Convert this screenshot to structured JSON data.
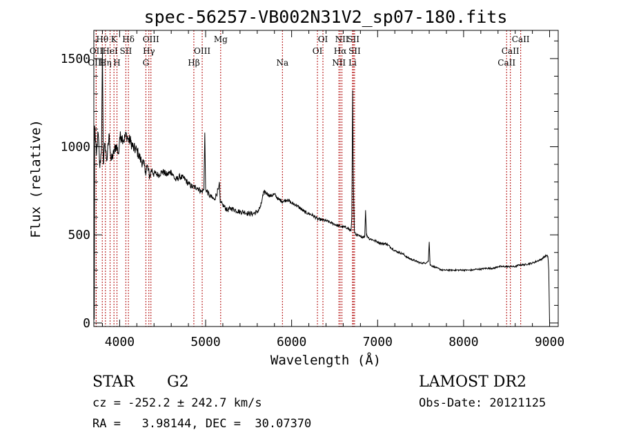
{
  "chart_data": {
    "type": "line",
    "title": "spec-56257-VB002N31V2_sp07-180.fits",
    "xlabel": "Wavelength (Å)",
    "ylabel": "Flux (relative)",
    "xlim": [
      3700,
      9100
    ],
    "ylim": [
      -20,
      1660
    ],
    "x_ticks": [
      4000,
      5000,
      6000,
      7000,
      8000,
      9000
    ],
    "y_ticks": [
      0,
      500,
      1000,
      1500
    ],
    "x_minor_step": 200,
    "y_minor_step": 100,
    "grid": false,
    "line_markers": [
      {
        "label": "Hθ",
        "wavelength": 3798,
        "row": 0
      },
      {
        "label": "K",
        "wavelength": 3934,
        "row": 0
      },
      {
        "label": "Hδ",
        "wavelength": 4102,
        "row": 0
      },
      {
        "label": "OIII",
        "wavelength": 4364,
        "row": 0
      },
      {
        "label": "Mg",
        "wavelength": 5175,
        "row": 0
      },
      {
        "label": "OI",
        "wavelength": 6364,
        "row": 0
      },
      {
        "label": "NII",
        "wavelength": 6585,
        "row": 0
      },
      {
        "label": "SII",
        "wavelength": 6718,
        "row": 0
      },
      {
        "label": "CaII",
        "wavelength": 8664,
        "row": 0
      },
      {
        "label": "OII",
        "wavelength": 3727,
        "row": 1
      },
      {
        "label": "HeI",
        "wavelength": 3889,
        "row": 1
      },
      {
        "label": "SII",
        "wavelength": 4072,
        "row": 1
      },
      {
        "label": "Hγ",
        "wavelength": 4340,
        "row": 1
      },
      {
        "label": "OIII",
        "wavelength": 4960,
        "row": 1
      },
      {
        "label": "OI",
        "wavelength": 6300,
        "row": 1
      },
      {
        "label": "Hα",
        "wavelength": 6565,
        "row": 1
      },
      {
        "label": "SII",
        "wavelength": 6732,
        "row": 1
      },
      {
        "label": "CaII",
        "wavelength": 8544,
        "row": 1
      },
      {
        "label": "OIII",
        "wavelength": 3727,
        "row": 2
      },
      {
        "label": "Hη",
        "wavelength": 3835,
        "row": 2
      },
      {
        "label": "H",
        "wavelength": 3969,
        "row": 2
      },
      {
        "label": "G",
        "wavelength": 4305,
        "row": 2
      },
      {
        "label": "Hβ",
        "wavelength": 4863,
        "row": 2
      },
      {
        "label": "Na",
        "wavelength": 5893,
        "row": 2
      },
      {
        "label": "NII",
        "wavelength": 6550,
        "row": 2
      },
      {
        "label": "Li",
        "wavelength": 6708,
        "row": 2
      },
      {
        "label": "CaII",
        "wavelength": 8500,
        "row": 2
      }
    ],
    "spectrum_anchors": [
      [
        3700,
        430
      ],
      [
        3705,
        20
      ],
      [
        3710,
        1120
      ],
      [
        3730,
        950
      ],
      [
        3750,
        1080
      ],
      [
        3770,
        880
      ],
      [
        3790,
        1000
      ],
      [
        3800,
        1560
      ],
      [
        3810,
        900
      ],
      [
        3830,
        1020
      ],
      [
        3850,
        920
      ],
      [
        3880,
        1070
      ],
      [
        3900,
        920
      ],
      [
        3930,
        960
      ],
      [
        3960,
        1010
      ],
      [
        3990,
        960
      ],
      [
        4000,
        1050
      ],
      [
        4020,
        1060
      ],
      [
        4050,
        1040
      ],
      [
        4080,
        1070
      ],
      [
        4100,
        1040
      ],
      [
        4130,
        1030
      ],
      [
        4160,
        990
      ],
      [
        4200,
        980
      ],
      [
        4240,
        930
      ],
      [
        4280,
        900
      ],
      [
        4300,
        860
      ],
      [
        4320,
        890
      ],
      [
        4350,
        830
      ],
      [
        4370,
        870
      ],
      [
        4400,
        850
      ],
      [
        4450,
        840
      ],
      [
        4500,
        860
      ],
      [
        4550,
        840
      ],
      [
        4600,
        860
      ],
      [
        4650,
        810
      ],
      [
        4700,
        830
      ],
      [
        4750,
        820
      ],
      [
        4800,
        790
      ],
      [
        4850,
        770
      ],
      [
        4900,
        770
      ],
      [
        4950,
        745
      ],
      [
        4980,
        755
      ],
      [
        4990,
        1080
      ],
      [
        5000,
        760
      ],
      [
        5050,
        720
      ],
      [
        5100,
        700
      ],
      [
        5150,
        760
      ],
      [
        5160,
        800
      ],
      [
        5170,
        680
      ],
      [
        5200,
        670
      ],
      [
        5250,
        640
      ],
      [
        5300,
        650
      ],
      [
        5350,
        640
      ],
      [
        5400,
        630
      ],
      [
        5450,
        630
      ],
      [
        5500,
        620
      ],
      [
        5550,
        620
      ],
      [
        5600,
        630
      ],
      [
        5640,
        660
      ],
      [
        5660,
        710
      ],
      [
        5680,
        740
      ],
      [
        5700,
        740
      ],
      [
        5750,
        720
      ],
      [
        5800,
        730
      ],
      [
        5850,
        700
      ],
      [
        5900,
        690
      ],
      [
        5950,
        700
      ],
      [
        6000,
        680
      ],
      [
        6050,
        670
      ],
      [
        6100,
        650
      ],
      [
        6150,
        630
      ],
      [
        6200,
        620
      ],
      [
        6250,
        610
      ],
      [
        6300,
        590
      ],
      [
        6350,
        585
      ],
      [
        6400,
        580
      ],
      [
        6450,
        570
      ],
      [
        6500,
        560
      ],
      [
        6550,
        550
      ],
      [
        6600,
        545
      ],
      [
        6650,
        540
      ],
      [
        6690,
        520
      ],
      [
        6700,
        600
      ],
      [
        6710,
        1320
      ],
      [
        6715,
        940
      ],
      [
        6720,
        740
      ],
      [
        6730,
        520
      ],
      [
        6750,
        500
      ],
      [
        6800,
        490
      ],
      [
        6850,
        490
      ],
      [
        6860,
        640
      ],
      [
        6870,
        500
      ],
      [
        6900,
        480
      ],
      [
        6950,
        470
      ],
      [
        7000,
        460
      ],
      [
        7050,
        450
      ],
      [
        7100,
        450
      ],
      [
        7150,
        430
      ],
      [
        7200,
        410
      ],
      [
        7250,
        400
      ],
      [
        7300,
        390
      ],
      [
        7350,
        370
      ],
      [
        7400,
        360
      ],
      [
        7450,
        350
      ],
      [
        7500,
        340
      ],
      [
        7550,
        340
      ],
      [
        7590,
        350
      ],
      [
        7600,
        460
      ],
      [
        7610,
        330
      ],
      [
        7650,
        320
      ],
      [
        7700,
        310
      ],
      [
        7750,
        300
      ],
      [
        7800,
        300
      ],
      [
        7850,
        300
      ],
      [
        7900,
        300
      ],
      [
        7950,
        300
      ],
      [
        8000,
        300
      ],
      [
        8050,
        300
      ],
      [
        8100,
        300
      ],
      [
        8150,
        305
      ],
      [
        8200,
        305
      ],
      [
        8250,
        310
      ],
      [
        8300,
        310
      ],
      [
        8350,
        310
      ],
      [
        8400,
        320
      ],
      [
        8450,
        320
      ],
      [
        8500,
        320
      ],
      [
        8550,
        320
      ],
      [
        8600,
        320
      ],
      [
        8650,
        330
      ],
      [
        8700,
        330
      ],
      [
        8750,
        335
      ],
      [
        8800,
        340
      ],
      [
        8850,
        350
      ],
      [
        8900,
        360
      ],
      [
        8950,
        380
      ],
      [
        8980,
        380
      ],
      [
        8990,
        300
      ],
      [
        9000,
        0
      ]
    ]
  },
  "footer": {
    "object_class": "STAR",
    "subclass": "G2",
    "survey": "LAMOST DR2",
    "redshift_line": "cz = -252.2 ± 242.7 km/s",
    "obs_date_line": "Obs-Date: 20121125",
    "coords_line": "RA =   3.98144, DEC =  30.07370"
  }
}
